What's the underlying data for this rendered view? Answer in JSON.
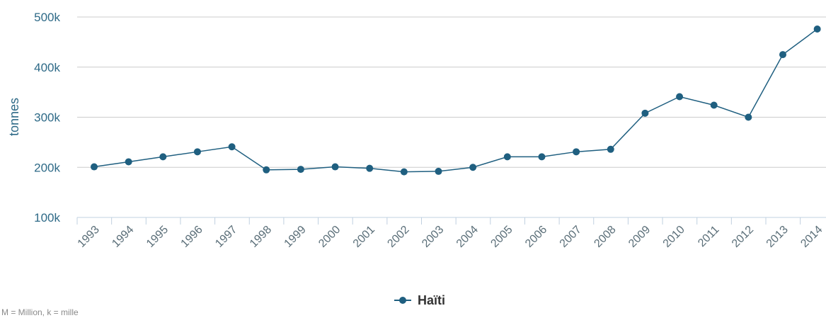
{
  "chart_data": {
    "type": "line",
    "ylabel": "tonnes",
    "xlabel": "",
    "title": "",
    "ylim": [
      100000,
      500000
    ],
    "yticks": [
      100000,
      200000,
      300000,
      400000,
      500000
    ],
    "ytick_labels": [
      "100k",
      "200k",
      "300k",
      "400k",
      "500k"
    ],
    "categories": [
      "1993",
      "1994",
      "1995",
      "1996",
      "1997",
      "1998",
      "1999",
      "2000",
      "2001",
      "2002",
      "2003",
      "2004",
      "2005",
      "2006",
      "2007",
      "2008",
      "2009",
      "2010",
      "2011",
      "2012",
      "2013",
      "2014"
    ],
    "series": [
      {
        "name": "Haïti",
        "color": "#1f5f80",
        "values": [
          201000,
          211000,
          221000,
          231000,
          241000,
          195000,
          196000,
          201000,
          198000,
          191000,
          192000,
          200000,
          221000,
          221000,
          231000,
          236000,
          308000,
          341000,
          324000,
          300000,
          425000,
          476000
        ]
      }
    ],
    "grid": true,
    "legend_position": "bottom-center"
  },
  "footnote": "M = Million, k = mille"
}
